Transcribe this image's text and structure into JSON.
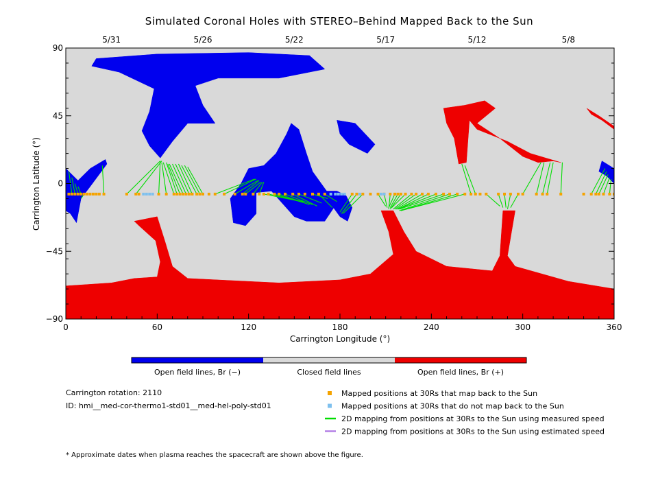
{
  "chart_data": {
    "type": "heatmap",
    "title": "Simulated Coronal Holes with STEREO–Behind Mapped Back to the Sun",
    "xlabel": "Carrington Longitude (°)",
    "ylabel": "Carrington Latitude (°)",
    "xlim": [
      0,
      360
    ],
    "ylim": [
      -90,
      90
    ],
    "x_ticks": [
      0,
      60,
      120,
      180,
      240,
      300,
      360
    ],
    "y_ticks": [
      90,
      45,
      0,
      -45,
      -90
    ],
    "y_tick_labels": [
      "90",
      "45",
      "0",
      "−45",
      "−90"
    ],
    "top_axis": {
      "dates": [
        {
          "label": "5/31",
          "lon": 30
        },
        {
          "label": "5/26",
          "lon": 90
        },
        {
          "label": "5/22",
          "lon": 150
        },
        {
          "label": "5/17",
          "lon": 210
        },
        {
          "label": "5/12",
          "lon": 270
        },
        {
          "label": "5/8",
          "lon": 330
        }
      ]
    },
    "colors": {
      "negative": "#0000ee",
      "closed": "#d9d9d9",
      "positive": "#ee0000",
      "mapped": "#f5a300",
      "unmapped": "#7ec0ee",
      "measured": "#00dd00",
      "estimated": "#b37fe6"
    },
    "colorbar": [
      {
        "label": "Open field lines, Br (−)",
        "color": "#0000ee"
      },
      {
        "label": "Closed field lines",
        "color": "#d9d9d9"
      },
      {
        "label": "Open field lines, Br (+)",
        "color": "#ee0000"
      }
    ],
    "regions": [
      {
        "polarity": "negative",
        "points": [
          [
            20,
            83
          ],
          [
            60,
            86
          ],
          [
            120,
            87
          ],
          [
            160,
            85
          ],
          [
            170,
            76
          ],
          [
            140,
            70
          ],
          [
            100,
            70
          ],
          [
            85,
            65
          ],
          [
            90,
            52
          ],
          [
            98,
            40
          ],
          [
            80,
            40
          ],
          [
            70,
            28
          ],
          [
            62,
            17
          ],
          [
            55,
            25
          ],
          [
            50,
            35
          ],
          [
            55,
            48
          ],
          [
            58,
            63
          ],
          [
            35,
            74
          ],
          [
            17,
            78
          ]
        ]
      },
      {
        "polarity": "negative",
        "points": [
          [
            0,
            10
          ],
          [
            8,
            2
          ],
          [
            16,
            10
          ],
          [
            26,
            16
          ],
          [
            27,
            13
          ],
          [
            16,
            -2
          ],
          [
            10,
            -10
          ],
          [
            7,
            -26
          ],
          [
            3,
            -20
          ],
          [
            0,
            -18
          ]
        ]
      },
      {
        "polarity": "negative",
        "points": [
          [
            120,
            10
          ],
          [
            130,
            12
          ],
          [
            138,
            20
          ],
          [
            145,
            33
          ],
          [
            148,
            40
          ],
          [
            153,
            36
          ],
          [
            158,
            20
          ],
          [
            162,
            8
          ],
          [
            172,
            -6
          ],
          [
            176,
            -16
          ],
          [
            170,
            -25
          ],
          [
            158,
            -25
          ],
          [
            150,
            -22
          ],
          [
            135,
            -5
          ],
          [
            125,
            -6
          ],
          [
            125,
            -20
          ],
          [
            118,
            -28
          ],
          [
            110,
            -26
          ],
          [
            108,
            -10
          ],
          [
            115,
            0
          ]
        ]
      },
      {
        "polarity": "negative",
        "points": [
          [
            178,
            42
          ],
          [
            190,
            40
          ],
          [
            203,
            26
          ],
          [
            198,
            20
          ],
          [
            186,
            26
          ],
          [
            180,
            33
          ]
        ]
      },
      {
        "polarity": "negative",
        "points": [
          [
            168,
            -5
          ],
          [
            172,
            -9
          ],
          [
            175,
            -15
          ],
          [
            180,
            -22
          ],
          [
            185,
            -25
          ],
          [
            188,
            -16
          ],
          [
            184,
            -8
          ],
          [
            178,
            -5
          ]
        ]
      },
      {
        "polarity": "negative",
        "points": [
          [
            352,
            15
          ],
          [
            360,
            10
          ],
          [
            360,
            0
          ],
          [
            355,
            5
          ],
          [
            350,
            8
          ]
        ]
      },
      {
        "polarity": "positive",
        "points": [
          [
            0,
            -68
          ],
          [
            30,
            -66
          ],
          [
            45,
            -63
          ],
          [
            60,
            -62
          ],
          [
            62,
            -52
          ],
          [
            59,
            -38
          ],
          [
            48,
            -28
          ],
          [
            45,
            -25
          ],
          [
            60,
            -22
          ],
          [
            65,
            -38
          ],
          [
            70,
            -55
          ],
          [
            80,
            -63
          ],
          [
            140,
            -66
          ],
          [
            180,
            -64
          ],
          [
            200,
            -60
          ],
          [
            215,
            -47
          ],
          [
            212,
            -32
          ],
          [
            207,
            -18
          ],
          [
            215,
            -18
          ],
          [
            222,
            -32
          ],
          [
            230,
            -45
          ],
          [
            250,
            -55
          ],
          [
            280,
            -58
          ],
          [
            285,
            -48
          ],
          [
            287,
            -18
          ],
          [
            295,
            -18
          ],
          [
            290,
            -48
          ],
          [
            295,
            -55
          ],
          [
            330,
            -65
          ],
          [
            360,
            -70
          ],
          [
            360,
            -90
          ],
          [
            0,
            -90
          ]
        ]
      },
      {
        "polarity": "positive",
        "points": [
          [
            248,
            50
          ],
          [
            262,
            52
          ],
          [
            275,
            55
          ],
          [
            282,
            50
          ],
          [
            270,
            40
          ],
          [
            285,
            30
          ],
          [
            300,
            18
          ],
          [
            310,
            14
          ],
          [
            320,
            15
          ],
          [
            325,
            14
          ],
          [
            305,
            20
          ],
          [
            290,
            28
          ],
          [
            270,
            36
          ],
          [
            265,
            42
          ],
          [
            263,
            14
          ],
          [
            258,
            13
          ],
          [
            255,
            30
          ],
          [
            250,
            40
          ]
        ]
      },
      {
        "polarity": "positive",
        "points": [
          [
            342,
            50
          ],
          [
            350,
            45
          ],
          [
            360,
            38
          ],
          [
            360,
            36
          ],
          [
            352,
            42
          ],
          [
            345,
            46
          ]
        ]
      }
    ],
    "mapped_positions_lat": -7,
    "mapped_points_lon": [
      2,
      4,
      6,
      8,
      10,
      12,
      14,
      16,
      18,
      20,
      22,
      25,
      40,
      46,
      48,
      61,
      66,
      71,
      73,
      75,
      77,
      79,
      81,
      83,
      86,
      88,
      90,
      94,
      98,
      104,
      111,
      116,
      118,
      123,
      127,
      130,
      133,
      137,
      140,
      144,
      149,
      153,
      157,
      162,
      166,
      170,
      188,
      191,
      195,
      200,
      205,
      209,
      213,
      216,
      218,
      220,
      223,
      227,
      230,
      234,
      238,
      243,
      248,
      252,
      257,
      262,
      266,
      269,
      272,
      276,
      284,
      288,
      292,
      297,
      300,
      309,
      313,
      316,
      325,
      340,
      345,
      348,
      350,
      353,
      357,
      360
    ],
    "unmapped_points_lon": [
      51,
      53,
      55,
      57,
      174,
      177,
      179,
      181,
      183,
      193,
      207,
      209
    ],
    "mapping_lines": [
      [
        [
          4,
          -7
        ],
        [
          2,
          8
        ]
      ],
      [
        [
          6,
          -7
        ],
        [
          4,
          4
        ]
      ],
      [
        [
          8,
          -7
        ],
        [
          6,
          0
        ]
      ],
      [
        [
          10,
          -7
        ],
        [
          8,
          -2
        ]
      ],
      [
        [
          12,
          -7
        ],
        [
          10,
          -10
        ]
      ],
      [
        [
          25,
          -7
        ],
        [
          24,
          12
        ]
      ],
      [
        [
          40,
          -7
        ],
        [
          62,
          15
        ]
      ],
      [
        [
          46,
          -7
        ],
        [
          63,
          15
        ]
      ],
      [
        [
          61,
          -7
        ],
        [
          62,
          15
        ]
      ],
      [
        [
          66,
          -7
        ],
        [
          63,
          14
        ]
      ],
      [
        [
          71,
          -7
        ],
        [
          64,
          14
        ]
      ],
      [
        [
          73,
          -7
        ],
        [
          66,
          14
        ]
      ],
      [
        [
          75,
          -7
        ],
        [
          67,
          13
        ]
      ],
      [
        [
          77,
          -7
        ],
        [
          68,
          13
        ]
      ],
      [
        [
          79,
          -7
        ],
        [
          70,
          13
        ]
      ],
      [
        [
          81,
          -7
        ],
        [
          72,
          13
        ]
      ],
      [
        [
          83,
          -7
        ],
        [
          74,
          13
        ]
      ],
      [
        [
          86,
          -7
        ],
        [
          76,
          12
        ]
      ],
      [
        [
          88,
          -7
        ],
        [
          78,
          12
        ]
      ],
      [
        [
          90,
          -7
        ],
        [
          80,
          11
        ]
      ],
      [
        [
          98,
          -7
        ],
        [
          124,
          3
        ]
      ],
      [
        [
          104,
          -7
        ],
        [
          125,
          3
        ]
      ],
      [
        [
          111,
          -7
        ],
        [
          126,
          2
        ]
      ],
      [
        [
          116,
          -7
        ],
        [
          127,
          2
        ]
      ],
      [
        [
          118,
          -7
        ],
        [
          128,
          1
        ]
      ],
      [
        [
          123,
          -7
        ],
        [
          129,
          1
        ]
      ],
      [
        [
          127,
          -7
        ],
        [
          130,
          1
        ]
      ],
      [
        [
          130,
          -7
        ],
        [
          155,
          -12
        ]
      ],
      [
        [
          133,
          -7
        ],
        [
          156,
          -12
        ]
      ],
      [
        [
          137,
          -7
        ],
        [
          157,
          -13
        ]
      ],
      [
        [
          140,
          -7
        ],
        [
          160,
          -14
        ]
      ],
      [
        [
          144,
          -7
        ],
        [
          162,
          -14
        ]
      ],
      [
        [
          149,
          -7
        ],
        [
          165,
          -15
        ]
      ],
      [
        [
          153,
          -7
        ],
        [
          168,
          -13
        ]
      ],
      [
        [
          162,
          -7
        ],
        [
          172,
          -10
        ]
      ],
      [
        [
          166,
          -7
        ],
        [
          175,
          -16
        ]
      ],
      [
        [
          170,
          -7
        ],
        [
          178,
          -12
        ]
      ],
      [
        [
          188,
          -7
        ],
        [
          180,
          -19
        ]
      ],
      [
        [
          191,
          -7
        ],
        [
          181,
          -20
        ]
      ],
      [
        [
          195,
          -7
        ],
        [
          182,
          -20
        ]
      ],
      [
        [
          205,
          -7
        ],
        [
          210,
          -15
        ]
      ],
      [
        [
          209,
          -7
        ],
        [
          211,
          -16
        ]
      ],
      [
        [
          213,
          -7
        ],
        [
          212,
          -17
        ]
      ],
      [
        [
          216,
          -7
        ],
        [
          212,
          -16
        ]
      ],
      [
        [
          218,
          -7
        ],
        [
          213,
          -16
        ]
      ],
      [
        [
          220,
          -7
        ],
        [
          213,
          -17
        ]
      ],
      [
        [
          223,
          -7
        ],
        [
          214,
          -16
        ]
      ],
      [
        [
          227,
          -7
        ],
        [
          215,
          -17
        ]
      ],
      [
        [
          230,
          -7
        ],
        [
          216,
          -17
        ]
      ],
      [
        [
          234,
          -7
        ],
        [
          217,
          -17
        ]
      ],
      [
        [
          238,
          -7
        ],
        [
          218,
          -17
        ]
      ],
      [
        [
          243,
          -7
        ],
        [
          218,
          -17
        ]
      ],
      [
        [
          248,
          -7
        ],
        [
          219,
          -17
        ]
      ],
      [
        [
          252,
          -7
        ],
        [
          219,
          -18
        ]
      ],
      [
        [
          257,
          -7
        ],
        [
          220,
          -18
        ]
      ],
      [
        [
          262,
          -7
        ],
        [
          220,
          -18
        ]
      ],
      [
        [
          266,
          -7
        ],
        [
          260,
          13
        ]
      ],
      [
        [
          269,
          -7
        ],
        [
          262,
          12
        ]
      ],
      [
        [
          276,
          -7
        ],
        [
          285,
          -15
        ]
      ],
      [
        [
          284,
          -7
        ],
        [
          287,
          -16
        ]
      ],
      [
        [
          288,
          -7
        ],
        [
          289,
          -16
        ]
      ],
      [
        [
          292,
          -7
        ],
        [
          290,
          -17
        ]
      ],
      [
        [
          297,
          -7
        ],
        [
          292,
          -16
        ]
      ],
      [
        [
          300,
          -7
        ],
        [
          312,
          14
        ]
      ],
      [
        [
          309,
          -7
        ],
        [
          314,
          14
        ]
      ],
      [
        [
          313,
          -7
        ],
        [
          318,
          14
        ]
      ],
      [
        [
          316,
          -7
        ],
        [
          320,
          14
        ]
      ],
      [
        [
          325,
          -7
        ],
        [
          326,
          14
        ]
      ],
      [
        [
          345,
          -7
        ],
        [
          354,
          10
        ]
      ],
      [
        [
          348,
          -7
        ],
        [
          355,
          8
        ]
      ],
      [
        [
          350,
          -7
        ],
        [
          356,
          6
        ]
      ],
      [
        [
          353,
          -7
        ],
        [
          357,
          4
        ]
      ],
      [
        [
          357,
          -7
        ],
        [
          358,
          3
        ]
      ]
    ],
    "legend": [
      {
        "label": "Mapped positions at 30Rs that map back to the Sun",
        "kind": "square",
        "color": "#f5a300"
      },
      {
        "label": "Mapped positions at 30Rs that do not map back to the Sun",
        "kind": "square",
        "color": "#7ec0ee"
      },
      {
        "label": "2D mapping from positions at 30Rs to the Sun using measured speed",
        "kind": "line",
        "color": "#00dd00"
      },
      {
        "label": "2D mapping from positions at 30Rs to the Sun using estimated speed",
        "kind": "line",
        "color": "#b37fe6"
      }
    ],
    "legend_placement": "bottom-right",
    "carrington_rotation": "Carrington rotation: 2110",
    "model_id": "ID: hmi__med-cor-thermo1-std01__med-hel-poly-std01",
    "footnote": "* Approximate dates when plasma reaches the spacecraft are shown above the figure."
  }
}
